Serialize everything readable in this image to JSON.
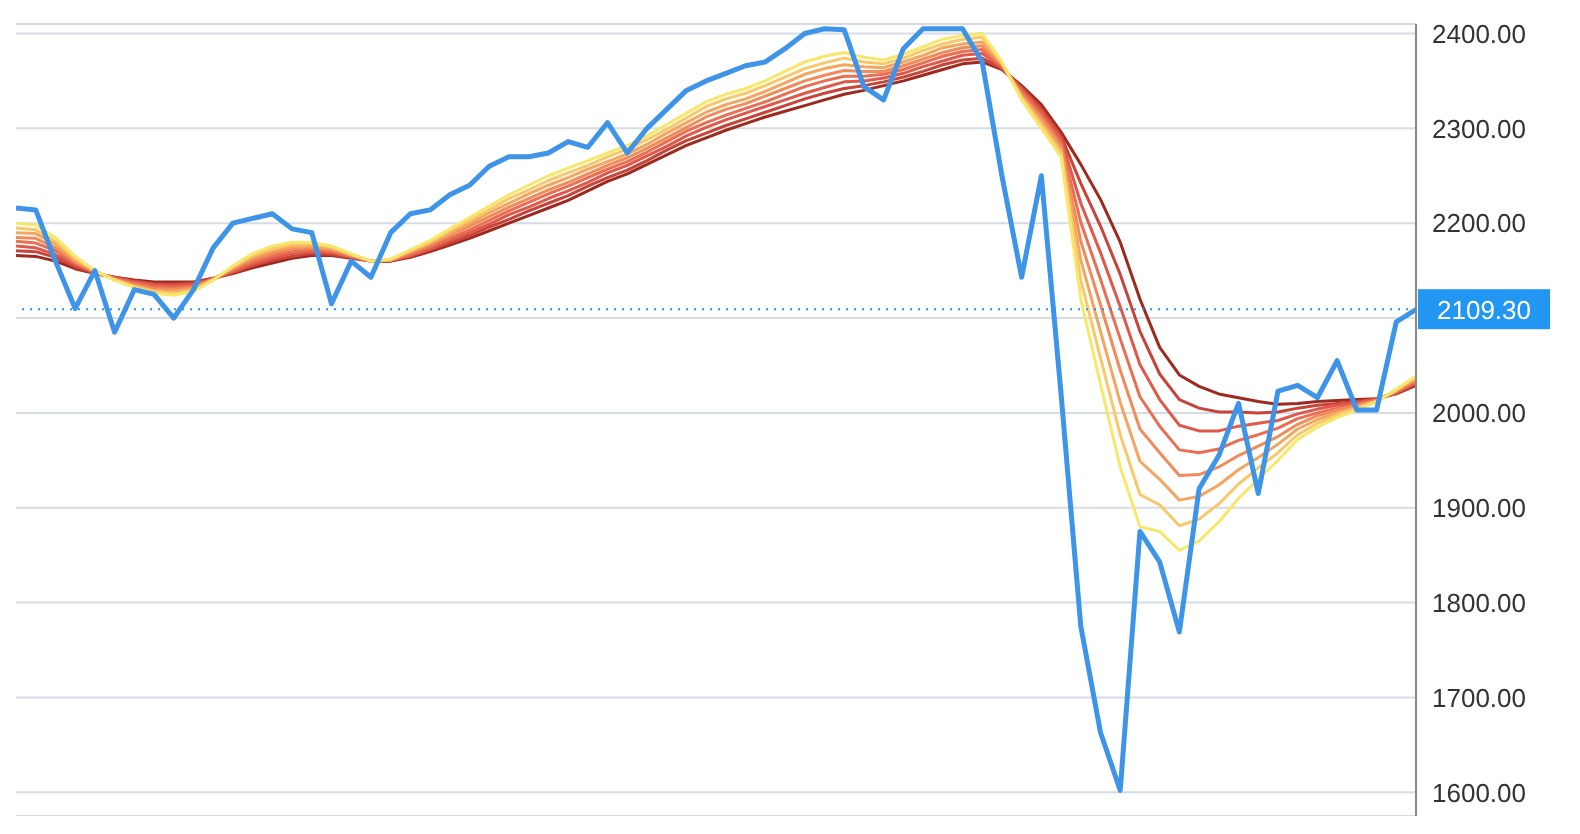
{
  "chart_data": {
    "type": "line",
    "categories": [
      null,
      null,
      null,
      null,
      null,
      null,
      null,
      null,
      null,
      null,
      null,
      null,
      null,
      null,
      null,
      null,
      null,
      null,
      null,
      null,
      null,
      null,
      null,
      null,
      null,
      null,
      null,
      null,
      null,
      null,
      null,
      null,
      null,
      null,
      null,
      null,
      null,
      null,
      null,
      null,
      null,
      null,
      null,
      null,
      null,
      null,
      null,
      null,
      null,
      null,
      null,
      null,
      null,
      null,
      null,
      null,
      null,
      null,
      null,
      null,
      null,
      null,
      null,
      null,
      null,
      null,
      null,
      null,
      null,
      null,
      null,
      null
    ],
    "series": [
      {
        "color": "#9e2a1f",
        "values": [
          2166,
          2165,
          2160,
          2152,
          2147,
          2143,
          2140,
          2138,
          2138,
          2138,
          2142,
          2147,
          2153,
          2158,
          2163,
          2166,
          2166,
          2163,
          2160,
          2160,
          2164,
          2170,
          2177,
          2184,
          2192,
          2200,
          2208,
          2216,
          2224,
          2234,
          2244,
          2252,
          2262,
          2272,
          2282,
          2290,
          2298,
          2305,
          2312,
          2318,
          2324,
          2330,
          2336,
          2340,
          2345,
          2350,
          2356,
          2362,
          2368,
          2370,
          2362,
          2345,
          2325,
          2296,
          2262,
          2225,
          2180,
          2120,
          2069,
          2040,
          2028,
          2020,
          2016,
          2012,
          2009,
          2010,
          2012,
          2013,
          2014,
          2015,
          2020,
          2029
        ]
      },
      {
        "color": "#c94438",
        "values": [
          2171,
          2170,
          2164,
          2154,
          2147,
          2143,
          2139,
          2136,
          2136,
          2137,
          2142,
          2148,
          2155,
          2161,
          2165,
          2168,
          2167,
          2164,
          2160,
          2160,
          2165,
          2172,
          2179,
          2187,
          2196,
          2204,
          2213,
          2221,
          2229,
          2239,
          2248,
          2256,
          2266,
          2277,
          2287,
          2295,
          2303,
          2310,
          2317,
          2324,
          2331,
          2337,
          2342,
          2345,
          2349,
          2354,
          2360,
          2367,
          2372,
          2374,
          2363,
          2343,
          2321,
          2292,
          2242,
          2197,
          2146,
          2086,
          2041,
          2014,
          2005,
          2001,
          2001,
          2000,
          2001,
          2005,
          2008,
          2010,
          2012,
          2015,
          2021,
          2030
        ]
      },
      {
        "color": "#e0584a",
        "values": [
          2176,
          2174,
          2167,
          2156,
          2148,
          2142,
          2138,
          2135,
          2134,
          2135,
          2141,
          2149,
          2157,
          2163,
          2168,
          2170,
          2169,
          2164,
          2160,
          2161,
          2166,
          2173,
          2182,
          2190,
          2199,
          2209,
          2217,
          2226,
          2234,
          2243,
          2253,
          2261,
          2271,
          2281,
          2292,
          2301,
          2309,
          2316,
          2323,
          2330,
          2337,
          2343,
          2349,
          2350,
          2353,
          2358,
          2365,
          2371,
          2377,
          2379,
          2364,
          2341,
          2318,
          2289,
          2221,
          2169,
          2112,
          2051,
          2014,
          1987,
          1981,
          1981,
          1986,
          1989,
          1992,
          1999,
          2004,
          2008,
          2011,
          2014,
          2021,
          2032
        ]
      },
      {
        "color": "#ea6e52",
        "values": [
          2181,
          2179,
          2171,
          2158,
          2148,
          2142,
          2137,
          2133,
          2132,
          2134,
          2141,
          2150,
          2159,
          2166,
          2170,
          2172,
          2170,
          2165,
          2160,
          2161,
          2167,
          2175,
          2184,
          2193,
          2203,
          2213,
          2222,
          2231,
          2239,
          2248,
          2257,
          2265,
          2275,
          2286,
          2297,
          2306,
          2314,
          2321,
          2328,
          2336,
          2344,
          2350,
          2355,
          2355,
          2357,
          2362,
          2369,
          2376,
          2381,
          2383,
          2365,
          2339,
          2314,
          2285,
          2201,
          2141,
          2078,
          2017,
          1986,
          1961,
          1958,
          1962,
          1971,
          1977,
          1984,
          1994,
          2000,
          2005,
          2009,
          2014,
          2022,
          2033
        ]
      },
      {
        "color": "#f18c5a",
        "values": [
          2185,
          2184,
          2174,
          2159,
          2149,
          2141,
          2135,
          2131,
          2130,
          2132,
          2141,
          2152,
          2162,
          2168,
          2173,
          2174,
          2172,
          2166,
          2160,
          2161,
          2169,
          2177,
          2187,
          2197,
          2207,
          2217,
          2226,
          2235,
          2243,
          2252,
          2261,
          2269,
          2279,
          2290,
          2301,
          2312,
          2320,
          2326,
          2334,
          2342,
          2350,
          2356,
          2361,
          2360,
          2360,
          2366,
          2373,
          2380,
          2385,
          2387,
          2367,
          2336,
          2311,
          2281,
          2181,
          2114,
          2045,
          1983,
          1958,
          1934,
          1935,
          1943,
          1955,
          1965,
          1975,
          1988,
          1997,
          2003,
          2008,
          2013,
          2023,
          2035
        ]
      },
      {
        "color": "#f4a65e",
        "values": [
          2190,
          2189,
          2178,
          2161,
          2149,
          2141,
          2134,
          2129,
          2128,
          2131,
          2141,
          2153,
          2164,
          2171,
          2175,
          2176,
          2173,
          2167,
          2160,
          2161,
          2170,
          2179,
          2189,
          2200,
          2211,
          2221,
          2231,
          2240,
          2248,
          2257,
          2265,
          2273,
          2283,
          2295,
          2306,
          2317,
          2325,
          2331,
          2339,
          2348,
          2357,
          2363,
          2367,
          2365,
          2364,
          2370,
          2377,
          2385,
          2389,
          2391,
          2368,
          2334,
          2307,
          2277,
          2161,
          2086,
          2011,
          1949,
          1930,
          1908,
          1912,
          1924,
          1940,
          1953,
          1967,
          1983,
          1993,
          2000,
          2006,
          2013,
          2024,
          2036
        ]
      },
      {
        "color": "#f8c86a",
        "values": [
          2195,
          2193,
          2181,
          2163,
          2150,
          2140,
          2133,
          2128,
          2126,
          2129,
          2140,
          2154,
          2166,
          2173,
          2178,
          2178,
          2175,
          2167,
          2160,
          2162,
          2171,
          2180,
          2192,
          2203,
          2214,
          2226,
          2235,
          2245,
          2253,
          2261,
          2270,
          2278,
          2288,
          2299,
          2311,
          2323,
          2331,
          2337,
          2345,
          2354,
          2363,
          2369,
          2374,
          2370,
          2368,
          2374,
          2382,
          2389,
          2394,
          2396,
          2369,
          2332,
          2304,
          2274,
          2140,
          2058,
          1977,
          1914,
          1903,
          1881,
          1888,
          1904,
          1925,
          1942,
          1958,
          1977,
          1989,
          1998,
          2005,
          2012,
          2024,
          2038
        ]
      },
      {
        "color": "#f7e76b",
        "values": [
          2200,
          2198,
          2185,
          2165,
          2150,
          2140,
          2132,
          2126,
          2124,
          2128,
          2140,
          2155,
          2168,
          2176,
          2180,
          2180,
          2176,
          2168,
          2160,
          2162,
          2172,
          2182,
          2194,
          2206,
          2218,
          2230,
          2240,
          2250,
          2258,
          2266,
          2274,
          2282,
          2292,
          2304,
          2316,
          2328,
          2336,
          2342,
          2350,
          2360,
          2370,
          2376,
          2380,
          2375,
          2372,
          2378,
          2386,
          2394,
          2398,
          2400,
          2370,
          2330,
          2300,
          2270,
          2120,
          2030,
          1943,
          1880,
          1875,
          1855,
          1865,
          1885,
          1910,
          1930,
          1950,
          1972,
          1985,
          1995,
          2003,
          2012,
          2025,
          2039
        ]
      },
      {
        "color": "#3d94e8",
        "values": [
          2216,
          2214,
          2160,
          2110,
          2150,
          2085,
          2130,
          2125,
          2100,
          2130,
          2174,
          2200,
          2205,
          2210,
          2194,
          2190,
          2115,
          2160,
          2143,
          2190,
          2210,
          2214,
          2230,
          2240,
          2260,
          2270,
          2270,
          2274,
          2286,
          2280,
          2306,
          2274,
          2300,
          2320,
          2340,
          2350,
          2358,
          2366,
          2370,
          2384,
          2400,
          2405,
          2404,
          2344,
          2330,
          2384,
          2405,
          2405,
          2405,
          2370,
          2250,
          2143,
          2250,
          2020,
          1775,
          1663,
          1602,
          1875,
          1843,
          1769,
          1920,
          1955,
          2010,
          1915,
          2023,
          2029,
          2016,
          2055,
          2003,
          2003,
          2096,
          2109
        ]
      }
    ],
    "ylim": [
      1575,
      2410
    ],
    "yticks": [
      {
        "value": 1600,
        "label": "1600.00"
      },
      {
        "value": 1700,
        "label": "1700.00"
      },
      {
        "value": 1800,
        "label": "1800.00"
      },
      {
        "value": 1900,
        "label": "1900.00"
      },
      {
        "value": 2000,
        "label": "2000.00"
      },
      {
        "value": 2100,
        "label": null
      },
      {
        "value": 2200,
        "label": "2200.00"
      },
      {
        "value": 2300,
        "label": "2300.00"
      },
      {
        "value": 2400,
        "label": "2400.00"
      }
    ],
    "ref_lines": [
      {
        "axis": "y",
        "value": 2109.3,
        "label": "2109.30",
        "color": "#2196f3",
        "line_style": "dotted"
      }
    ],
    "grid": "y",
    "tick_labels": "y",
    "marker": "none",
    "line_style": "solid"
  }
}
